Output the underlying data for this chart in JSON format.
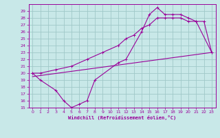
{
  "xlabel": "Windchill (Refroidissement éolien,°C)",
  "background_color": "#c8e8e8",
  "grid_color": "#a0c8c8",
  "line_color": "#990099",
  "xlim": [
    -0.5,
    23.5
  ],
  "ylim": [
    15,
    30
  ],
  "xticks": [
    0,
    1,
    2,
    3,
    4,
    5,
    6,
    7,
    8,
    9,
    10,
    11,
    12,
    13,
    14,
    15,
    16,
    17,
    18,
    19,
    20,
    21,
    22,
    23
  ],
  "yticks": [
    15,
    16,
    17,
    18,
    19,
    20,
    21,
    22,
    23,
    24,
    25,
    26,
    27,
    28,
    29
  ],
  "curve1_x": [
    0,
    1,
    3,
    4,
    5,
    6,
    7,
    8,
    11,
    12,
    14,
    15,
    16,
    17,
    18,
    19,
    20,
    21,
    22,
    23
  ],
  "curve1_y": [
    20,
    19,
    17.5,
    16,
    15,
    15.5,
    16,
    19,
    21.5,
    22,
    26,
    28.5,
    29.5,
    28.5,
    28.5,
    28.5,
    28,
    27.5,
    27.5,
    23
  ],
  "curve2_x": [
    0,
    1,
    3,
    5,
    7,
    9,
    11,
    12,
    13,
    14,
    15,
    16,
    17,
    18,
    19,
    20,
    21,
    23
  ],
  "curve2_y": [
    20,
    20,
    20.5,
    21,
    22,
    23,
    24,
    25,
    25.5,
    26.5,
    27,
    28,
    28,
    28,
    28,
    27.5,
    27.5,
    23
  ],
  "curve3_x": [
    0,
    23
  ],
  "curve3_y": [
    19.5,
    23
  ]
}
